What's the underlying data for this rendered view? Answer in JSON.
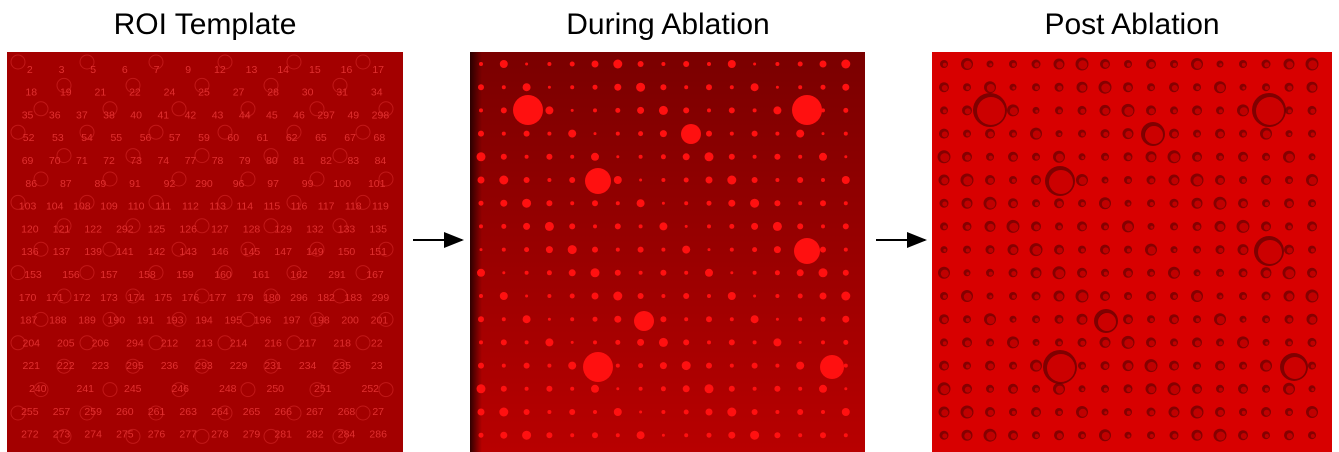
{
  "panels": [
    {
      "title": "ROI Template"
    },
    {
      "title": "During Ablation"
    },
    {
      "title": "Post Ablation"
    }
  ],
  "roi_labels": [
    [
      2,
      3,
      5,
      6,
      7,
      9,
      12,
      13,
      14,
      15,
      16,
      17
    ],
    [
      18,
      19,
      21,
      22,
      24,
      25,
      27,
      28,
      30,
      31,
      34
    ],
    [
      35,
      36,
      37,
      38,
      40,
      41,
      42,
      43,
      44,
      45,
      46,
      297,
      49,
      298
    ],
    [
      52,
      53,
      54,
      55,
      56,
      57,
      59,
      60,
      61,
      62,
      65,
      67,
      68
    ],
    [
      69,
      70,
      71,
      72,
      73,
      74,
      77,
      78,
      79,
      80,
      81,
      82,
      83,
      84
    ],
    [
      86,
      87,
      89,
      91,
      92,
      290,
      96,
      97,
      99,
      100,
      101
    ],
    [
      103,
      104,
      108,
      109,
      110,
      111,
      112,
      113,
      114,
      115,
      116,
      117,
      118,
      119
    ],
    [
      120,
      121,
      122,
      292,
      125,
      126,
      127,
      128,
      129,
      132,
      133,
      135
    ],
    [
      136,
      137,
      139,
      141,
      142,
      143,
      146,
      145,
      147,
      149,
      150,
      151
    ],
    [
      153,
      156,
      157,
      158,
      159,
      160,
      161,
      162,
      291,
      167
    ],
    [
      170,
      171,
      172,
      173,
      174,
      175,
      176,
      177,
      179,
      180,
      296,
      182,
      183,
      299
    ],
    [
      187,
      188,
      189,
      190,
      191,
      193,
      194,
      195,
      196,
      197,
      198,
      200,
      201
    ],
    [
      204,
      205,
      206,
      294,
      212,
      213,
      214,
      216,
      217,
      218,
      22
    ],
    [
      221,
      222,
      223,
      295,
      236,
      293,
      229,
      231,
      234,
      235,
      23
    ],
    [
      240,
      241,
      245,
      246,
      248,
      250,
      251,
      252
    ],
    [
      255,
      257,
      259,
      260,
      261,
      263,
      264,
      265,
      266,
      267,
      268,
      27
    ],
    [
      272,
      273,
      274,
      275,
      276,
      277,
      278,
      279,
      281,
      282,
      284,
      286
    ]
  ]
}
